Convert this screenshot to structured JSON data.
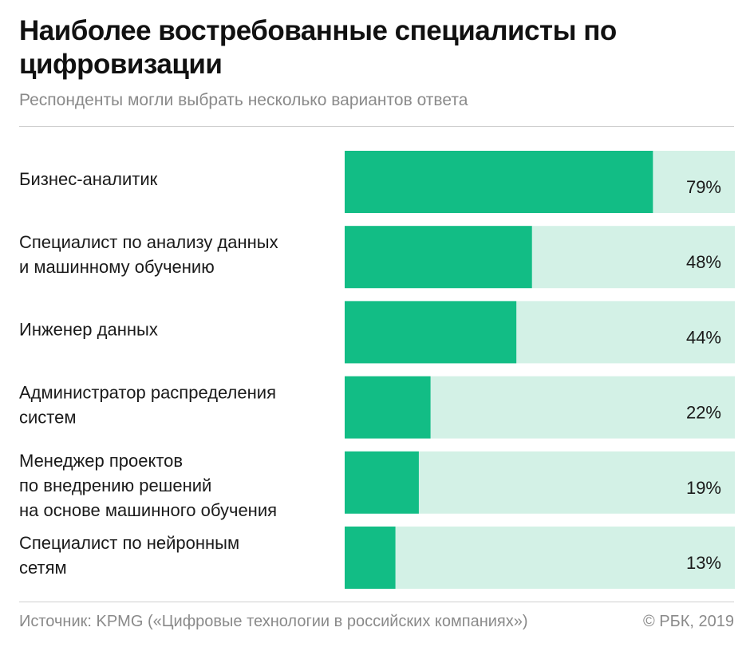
{
  "chart_data": {
    "type": "bar",
    "orientation": "horizontal",
    "title": "Наиболее востребованные специалисты по цифровизации",
    "subtitle": "Респонденты могли выбрать несколько вариантов ответа",
    "categories": [
      [
        "Бизнес-аналитик"
      ],
      [
        "Специалист по анализу данных",
        "и машинному обучению"
      ],
      [
        "Инженер данных"
      ],
      [
        "Администратор распределения",
        "систем"
      ],
      [
        "Менеджер проектов",
        "по внедрению решений",
        "на основе машинного обучения"
      ],
      [
        "Специалист по нейронным",
        "сетям"
      ]
    ],
    "values": [
      79,
      48,
      44,
      22,
      19,
      13
    ],
    "value_labels": [
      "79%",
      "48%",
      "44%",
      "22%",
      "19%",
      "13%"
    ],
    "xlim": [
      0,
      100
    ],
    "unit": "%",
    "grid": false,
    "colors": {
      "bar": "#12bd85",
      "track": "#d3f1e6"
    }
  },
  "footer": {
    "source": "Источник: KPMG («Цифровые технологии в российских компаниях»)",
    "copyright": "© РБК, 2019"
  }
}
